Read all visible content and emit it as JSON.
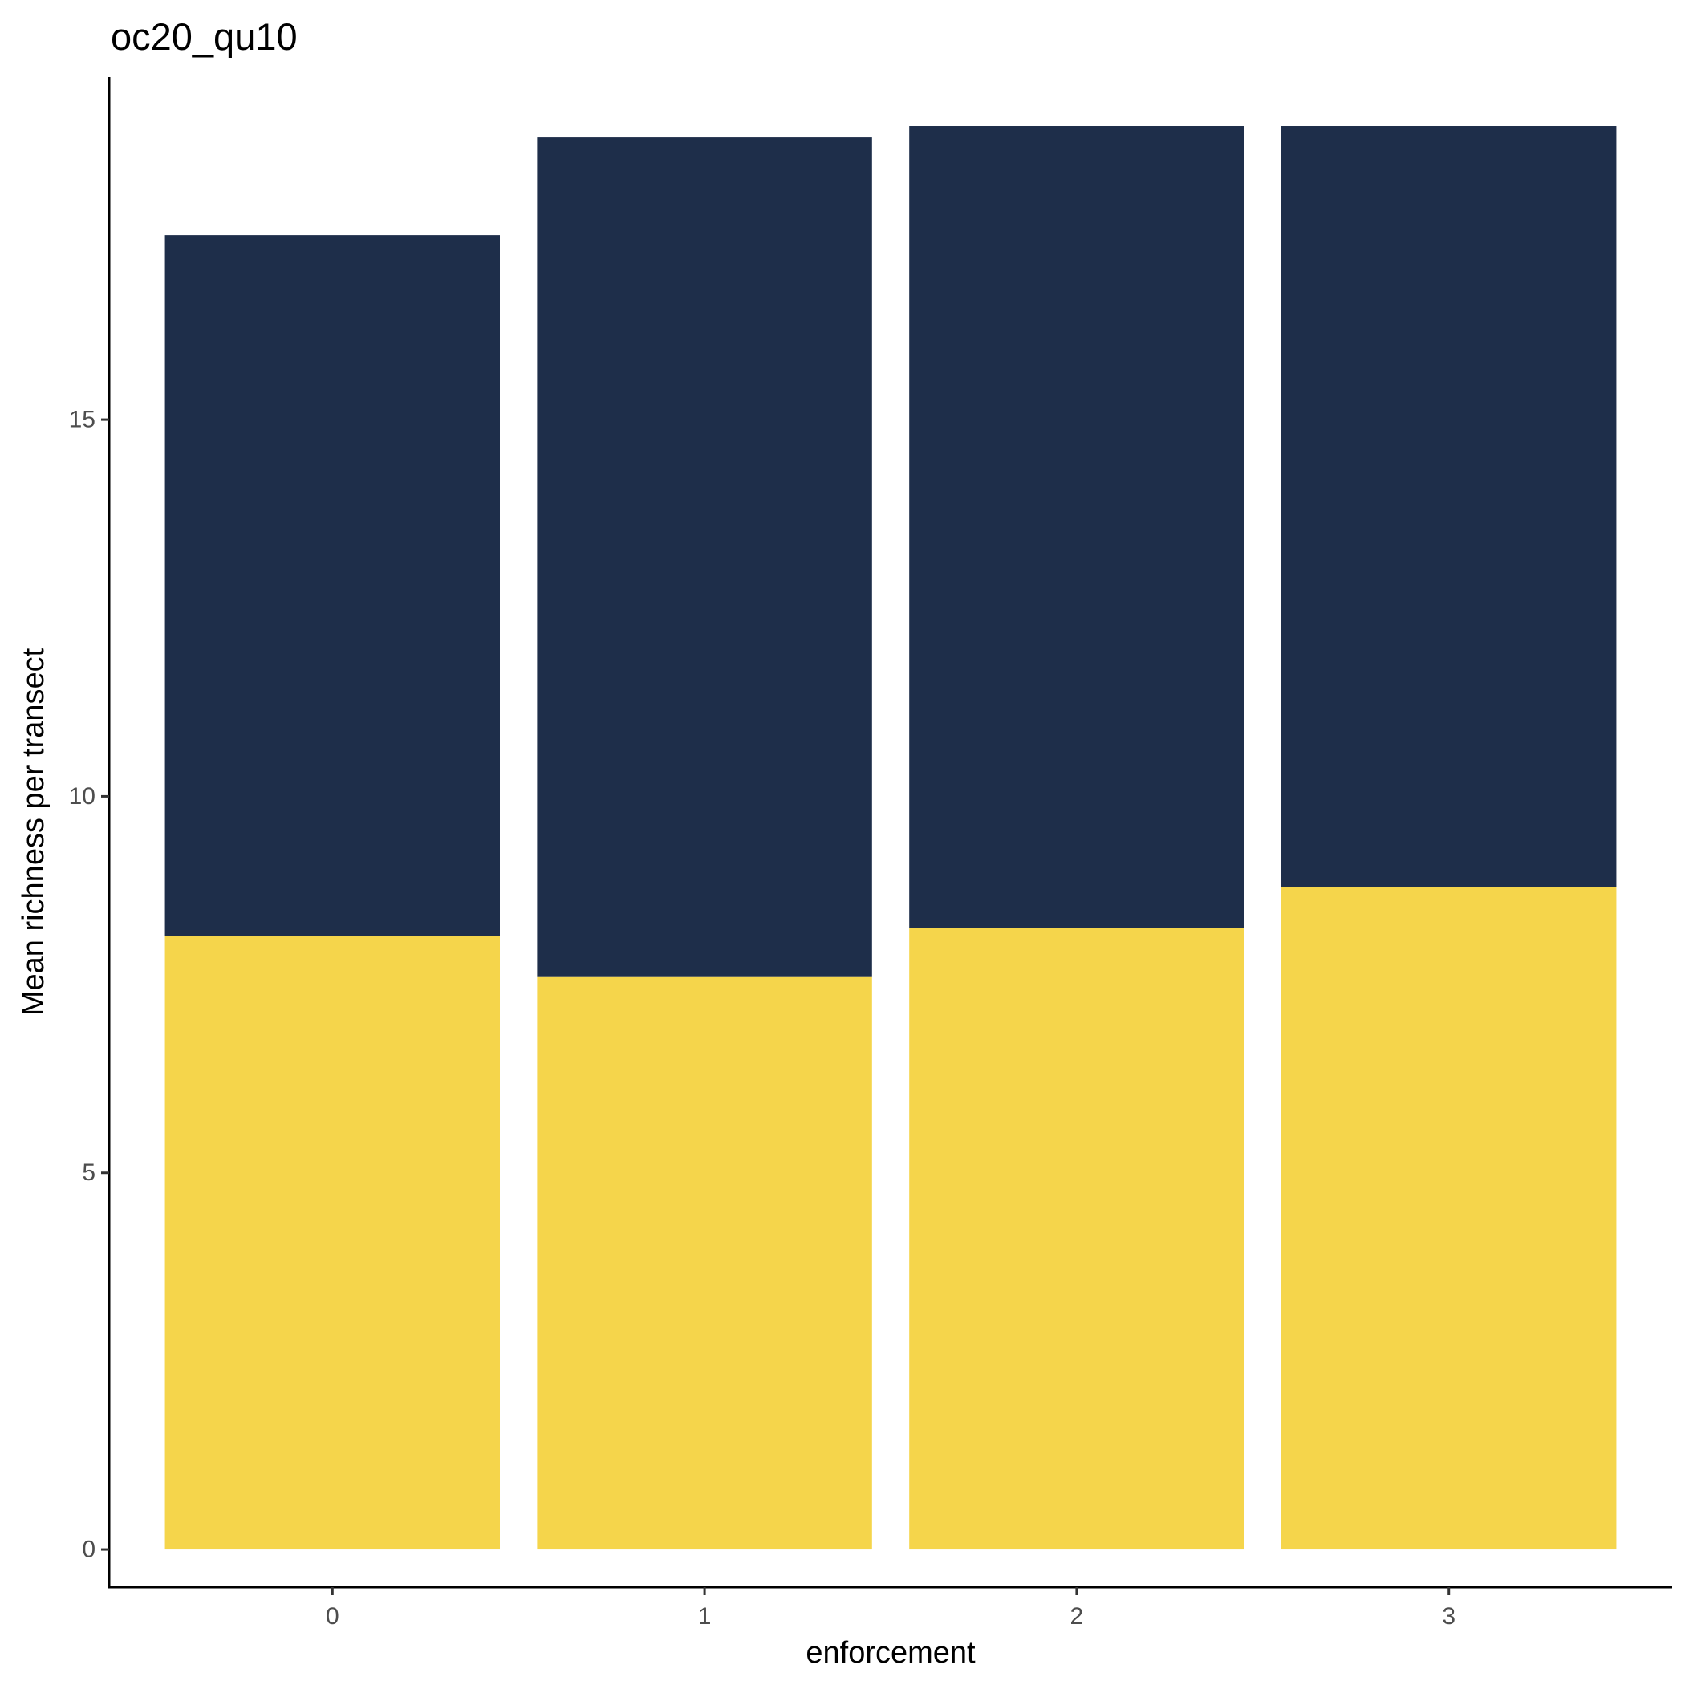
{
  "chart_data": {
    "type": "bar",
    "stacked": true,
    "title": "oc20_qu10",
    "xlabel": "enforcement",
    "ylabel": "Mean richness per transect",
    "categories": [
      "0",
      "1",
      "2",
      "3"
    ],
    "series": [
      {
        "color": "#f5d54b",
        "values": [
          8.15,
          7.6,
          8.25,
          8.8
        ]
      },
      {
        "color": "#1e2e4a",
        "values": [
          9.3,
          11.15,
          10.65,
          10.1
        ]
      }
    ],
    "ylim": [
      -0.5,
      19.55
    ],
    "yticks": [
      0,
      5,
      10,
      15
    ],
    "ytick_labels": [
      "0",
      "5",
      "10",
      "15"
    ],
    "grid": false,
    "legend": "none"
  }
}
